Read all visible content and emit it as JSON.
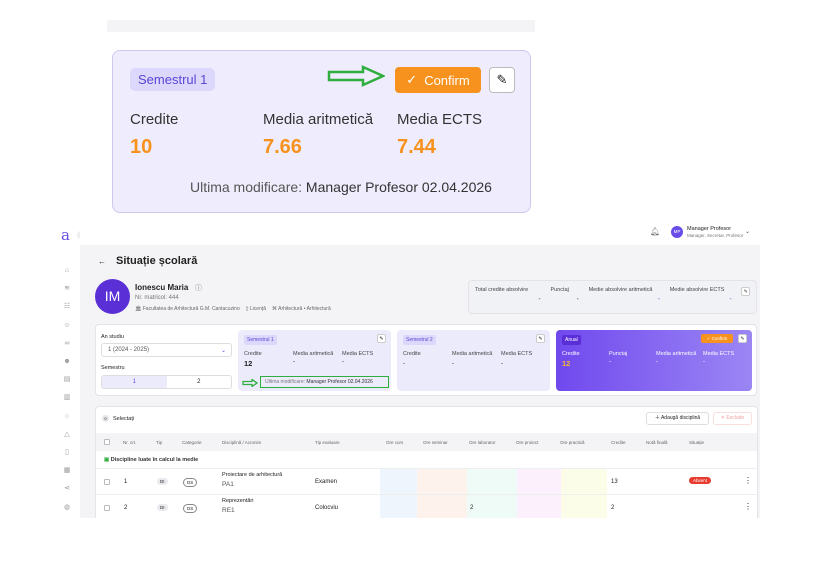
{
  "callout": {
    "badge": "Semestrul 1",
    "confirm": "Confirm",
    "labels": [
      "Credite",
      "Media aritmetică",
      "Media ECTS"
    ],
    "values": [
      "10",
      "7.66",
      "7.44"
    ],
    "last_mod_label": "Ultima modificare:",
    "last_mod_value": "Manager Profesor 02.04.2026"
  },
  "header": {
    "logo": "a",
    "user_initials": "MP",
    "user_name": "Manager Profesor",
    "user_roles": "Manager, Secretar, Profesor"
  },
  "page": {
    "title": "Situație școlară"
  },
  "student": {
    "initials": "IM",
    "name": "Ionescu Maria",
    "matricol": "Nr. matricol: 444",
    "faculty": "Facultatea de Arhitectură G.M. Cantacuzino",
    "level": "Licență",
    "program": "Arhitectură • Arhitectură"
  },
  "totals": {
    "labels": [
      "Total credite absolvire",
      "Punctaj",
      "Medie absolvire aritmetică",
      "Medie absolvire ECTS"
    ],
    "values": [
      "-",
      "-",
      "-",
      "-"
    ]
  },
  "filters": {
    "year_label": "An studiu",
    "year_value": "1 (2024 - 2025)",
    "semester_label": "Semestru",
    "semesters": [
      "1",
      "2"
    ]
  },
  "sem1": {
    "badge": "Semestrul 1",
    "labels": [
      "Credite",
      "Media aritmetică",
      "Media ECTS"
    ],
    "values": [
      "12",
      "-",
      "-"
    ],
    "last_mod_label": "Ultima modificare:",
    "last_mod_value": "Manager Profesor 02.04.2026"
  },
  "sem2": {
    "badge": "Semestrul 2",
    "labels": [
      "Credite",
      "Media aritmetică",
      "Media ECTS"
    ],
    "values": [
      "-",
      "-",
      "-"
    ]
  },
  "annual": {
    "badge": "Anual",
    "confirm": "Confirm",
    "labels": [
      "Credite",
      "Punctaj",
      "Media aritmetică",
      "Media ECTS"
    ],
    "values": [
      "12",
      "-",
      "-",
      "-"
    ]
  },
  "table": {
    "selected_count": "0",
    "selected_label": "Selectați",
    "add_button": "Adaugă disciplină",
    "exclude_button": "Exclude",
    "columns": [
      "Nr. crt.",
      "Tip",
      "Categorie",
      "Disciplină / Acronim",
      "Tip evaluare",
      "Ore curs",
      "Ore seminar",
      "Ore laborator",
      "Ore proiect",
      "Ore practică",
      "Credite",
      "Notă finală",
      "Situație"
    ],
    "group": "Discipline luate în calcul la medie",
    "rows": [
      {
        "nr": "1",
        "tip": "DI",
        "cat": "DS",
        "name": "Proiectare de arhitectură",
        "acr": "PA1",
        "eval": "Examen",
        "lab": "",
        "credits": "13",
        "status": "Absent"
      },
      {
        "nr": "2",
        "tip": "DI",
        "cat": "DS",
        "name": "Reprezentări",
        "acr": "RE1",
        "eval": "Colocviu",
        "lab": "2",
        "credits": "2",
        "status": ""
      }
    ]
  },
  "colors": {
    "accent": "#6a4de8",
    "orange": "#f7921e",
    "green": "#2fae3f",
    "red": "#e63b2e"
  }
}
